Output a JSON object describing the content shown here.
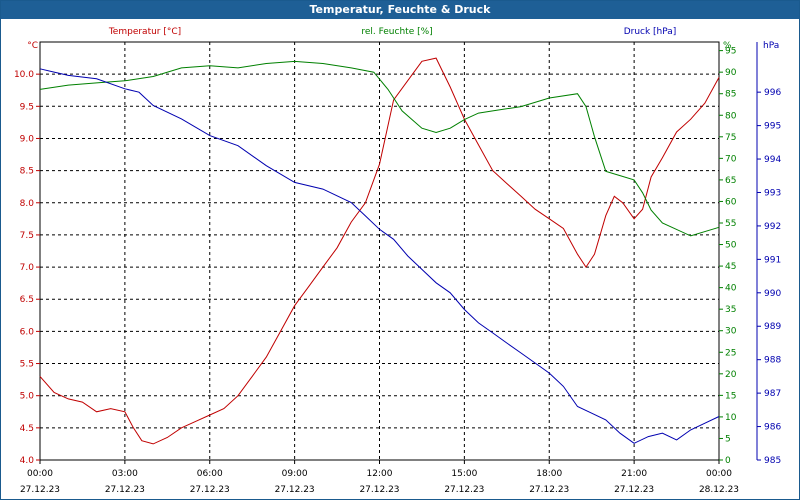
{
  "window": {
    "title": "Temperatur, Feuchte & Druck"
  },
  "colors": {
    "temperature": "#c00000",
    "humidity": "#008000",
    "pressure": "#0000b0",
    "grid": "#000000",
    "axis": "#000000"
  },
  "chart_data": {
    "type": "line",
    "title": "Temperatur, Feuchte & Druck",
    "grid": true,
    "x_ticks": [
      {
        "time": "00:00",
        "date": "27.12.23"
      },
      {
        "time": "03:00",
        "date": "27.12.23"
      },
      {
        "time": "06:00",
        "date": "27.12.23"
      },
      {
        "time": "09:00",
        "date": "27.12.23"
      },
      {
        "time": "12:00",
        "date": "27.12.23"
      },
      {
        "time": "15:00",
        "date": "27.12.23"
      },
      {
        "time": "18:00",
        "date": "27.12.23"
      },
      {
        "time": "21:00",
        "date": "27.12.23"
      },
      {
        "time": "00:00",
        "date": "28.12.23"
      }
    ],
    "xlim": [
      0,
      24
    ],
    "axes": {
      "temperature": {
        "label": "Temperatur [°C]",
        "unit": "°C",
        "ylim": [
          4.0,
          10.5
        ],
        "ticks": [
          "4.0",
          "4.5",
          "5.0",
          "5.5",
          "6.0",
          "6.5",
          "7.0",
          "7.5",
          "8.0",
          "8.5",
          "9.0",
          "9.5",
          "10.0"
        ]
      },
      "humidity": {
        "label": "rel. Feuchte [%]",
        "unit": "%",
        "ylim": [
          0,
          97
        ],
        "ticks": [
          "0",
          "5",
          "10",
          "15",
          "20",
          "25",
          "30",
          "35",
          "40",
          "45",
          "50",
          "55",
          "60",
          "65",
          "70",
          "75",
          "80",
          "85",
          "90",
          "95"
        ]
      },
      "pressure": {
        "label": "Druck [hPa]",
        "unit": "hPa",
        "ylim": [
          985,
          997.5
        ],
        "ticks": [
          "985",
          "986",
          "987",
          "988",
          "989",
          "990",
          "991",
          "992",
          "993",
          "994",
          "995",
          "996"
        ]
      }
    },
    "series": [
      {
        "name": "Temperatur [°C]",
        "axis": "temperature",
        "points": [
          [
            0,
            5.3
          ],
          [
            0.5,
            5.05
          ],
          [
            1,
            4.95
          ],
          [
            1.5,
            4.9
          ],
          [
            2,
            4.75
          ],
          [
            2.5,
            4.8
          ],
          [
            3,
            4.75
          ],
          [
            3.3,
            4.5
          ],
          [
            3.6,
            4.3
          ],
          [
            4,
            4.25
          ],
          [
            4.5,
            4.35
          ],
          [
            5,
            4.5
          ],
          [
            5.5,
            4.6
          ],
          [
            6,
            4.7
          ],
          [
            6.5,
            4.8
          ],
          [
            7,
            5.0
          ],
          [
            7.5,
            5.3
          ],
          [
            8,
            5.6
          ],
          [
            8.5,
            6.0
          ],
          [
            9,
            6.4
          ],
          [
            9.5,
            6.7
          ],
          [
            10,
            7.0
          ],
          [
            10.5,
            7.3
          ],
          [
            11,
            7.7
          ],
          [
            11.5,
            8.0
          ],
          [
            12,
            8.6
          ],
          [
            12.5,
            9.6
          ],
          [
            13,
            9.9
          ],
          [
            13.5,
            10.2
          ],
          [
            14,
            10.25
          ],
          [
            14.5,
            9.8
          ],
          [
            15,
            9.3
          ],
          [
            15.5,
            8.9
          ],
          [
            16,
            8.5
          ],
          [
            16.5,
            8.3
          ],
          [
            17,
            8.1
          ],
          [
            17.5,
            7.9
          ],
          [
            18,
            7.75
          ],
          [
            18.5,
            7.6
          ],
          [
            19,
            7.2
          ],
          [
            19.3,
            7.0
          ],
          [
            19.6,
            7.2
          ],
          [
            20,
            7.8
          ],
          [
            20.3,
            8.1
          ],
          [
            20.6,
            8.0
          ],
          [
            21,
            7.75
          ],
          [
            21.3,
            7.9
          ],
          [
            21.6,
            8.4
          ],
          [
            22,
            8.7
          ],
          [
            22.5,
            9.1
          ],
          [
            23,
            9.3
          ],
          [
            23.5,
            9.55
          ],
          [
            24,
            9.95
          ]
        ]
      },
      {
        "name": "rel. Feuchte [%]",
        "axis": "humidity",
        "points": [
          [
            0,
            86
          ],
          [
            1,
            87
          ],
          [
            2,
            87.5
          ],
          [
            3,
            88
          ],
          [
            4,
            89
          ],
          [
            5,
            91
          ],
          [
            6,
            91.5
          ],
          [
            7,
            91
          ],
          [
            8,
            92
          ],
          [
            9,
            92.5
          ],
          [
            10,
            92
          ],
          [
            11,
            91
          ],
          [
            11.8,
            90
          ],
          [
            12.3,
            86
          ],
          [
            12.8,
            81
          ],
          [
            13.5,
            77
          ],
          [
            14,
            76
          ],
          [
            14.5,
            77
          ],
          [
            15,
            79
          ],
          [
            15.5,
            80.5
          ],
          [
            16,
            81
          ],
          [
            17,
            82
          ],
          [
            18,
            84
          ],
          [
            19,
            85
          ],
          [
            19.3,
            82
          ],
          [
            19.6,
            75
          ],
          [
            20,
            67
          ],
          [
            20.5,
            66
          ],
          [
            21,
            65
          ],
          [
            21.3,
            62
          ],
          [
            21.6,
            58
          ],
          [
            22,
            55
          ],
          [
            23,
            52
          ],
          [
            24,
            54
          ]
        ]
      },
      {
        "name": "Druck [hPa]",
        "axis": "pressure",
        "points": [
          [
            0,
            996.7
          ],
          [
            0.5,
            996.6
          ],
          [
            1,
            996.5
          ],
          [
            2,
            996.4
          ],
          [
            3,
            996.1
          ],
          [
            3.5,
            996.0
          ],
          [
            4,
            995.6
          ],
          [
            5,
            995.2
          ],
          [
            6,
            994.7
          ],
          [
            7,
            994.4
          ],
          [
            8,
            993.8
          ],
          [
            9,
            993.3
          ],
          [
            10,
            993.1
          ],
          [
            11,
            992.7
          ],
          [
            11.5,
            992.3
          ],
          [
            12,
            991.9
          ],
          [
            12.5,
            991.6
          ],
          [
            13,
            991.1
          ],
          [
            13.5,
            990.7
          ],
          [
            14,
            990.3
          ],
          [
            14.5,
            990.0
          ],
          [
            15,
            989.5
          ],
          [
            15.5,
            989.1
          ],
          [
            16,
            988.8
          ],
          [
            16.5,
            988.5
          ],
          [
            17,
            988.2
          ],
          [
            17.5,
            987.9
          ],
          [
            18,
            987.6
          ],
          [
            18.5,
            987.2
          ],
          [
            19,
            986.6
          ],
          [
            19.5,
            986.4
          ],
          [
            20,
            986.2
          ],
          [
            20.5,
            985.8
          ],
          [
            21,
            985.5
          ],
          [
            21.5,
            985.7
          ],
          [
            22,
            985.8
          ],
          [
            22.5,
            985.6
          ],
          [
            23,
            985.9
          ],
          [
            23.5,
            986.1
          ],
          [
            24,
            986.3
          ]
        ]
      }
    ]
  }
}
